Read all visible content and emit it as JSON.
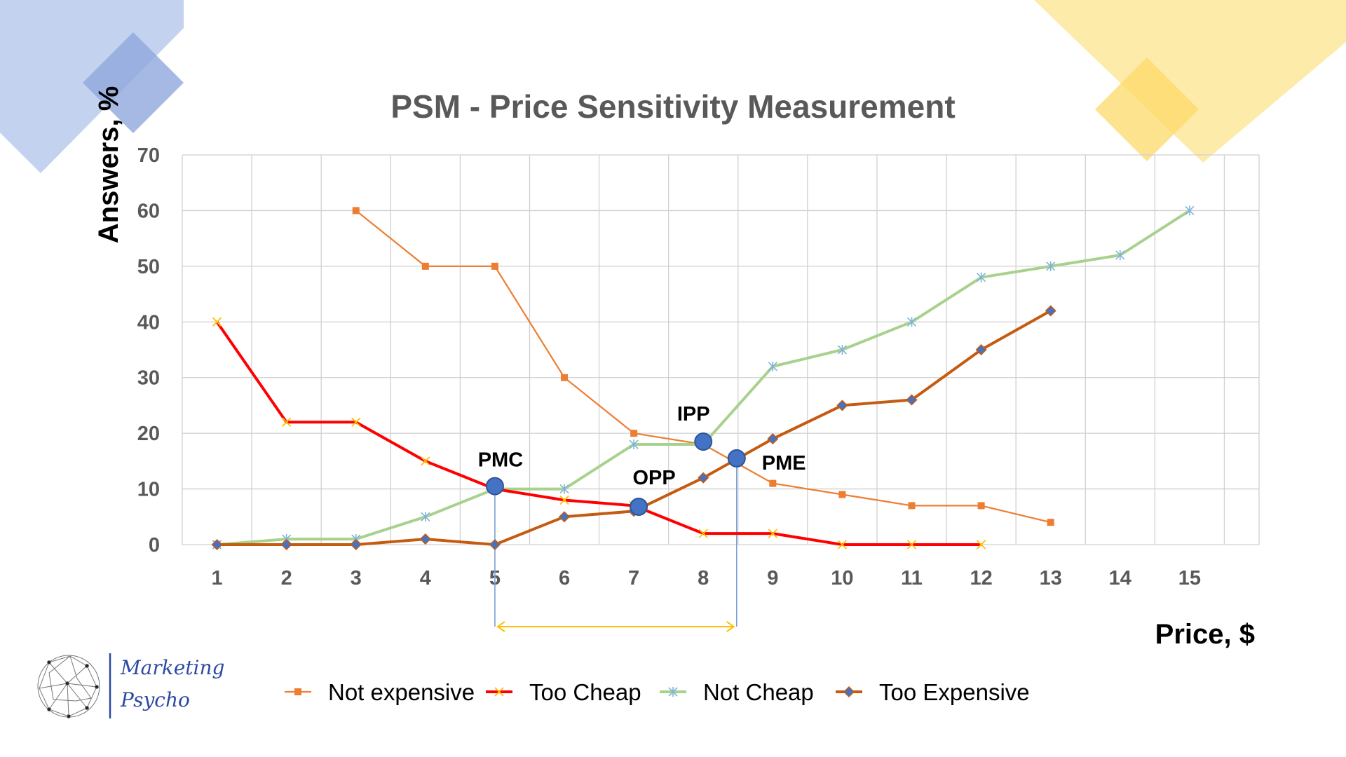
{
  "logo": {
    "line1": "Marketing",
    "line2": "Psycho"
  },
  "chart_data": {
    "type": "line",
    "title": "PSM - Price Sensitivity Measurement",
    "xlabel": "Price, $",
    "ylabel": "Answers, %",
    "x": [
      1,
      2,
      3,
      4,
      5,
      6,
      7,
      8,
      9,
      10,
      11,
      12,
      13,
      14,
      15
    ],
    "ylim": [
      0,
      70
    ],
    "yticks": [
      0,
      10,
      20,
      30,
      40,
      50,
      60,
      70
    ],
    "grid": true,
    "legend_position": "bottom",
    "series": [
      {
        "name": "Not expensive",
        "color": "#ed7d31",
        "marker": "square",
        "points": [
          [
            3,
            60
          ],
          [
            4,
            50
          ],
          [
            5,
            50
          ],
          [
            6,
            30
          ],
          [
            7,
            20
          ],
          [
            8,
            18
          ],
          [
            9,
            11
          ],
          [
            10,
            9
          ],
          [
            11,
            7
          ],
          [
            12,
            7
          ],
          [
            13,
            4
          ]
        ]
      },
      {
        "name": "Too Cheap",
        "color": "#ff0000",
        "marker": "x",
        "points": [
          [
            1,
            40
          ],
          [
            2,
            22
          ],
          [
            3,
            22
          ],
          [
            4,
            15
          ],
          [
            5,
            10
          ],
          [
            6,
            8
          ],
          [
            7,
            7
          ],
          [
            8,
            2
          ],
          [
            9,
            2
          ],
          [
            10,
            0
          ],
          [
            11,
            0
          ],
          [
            12,
            0
          ]
        ]
      },
      {
        "name": "Not Cheap",
        "color": "#a9d18e",
        "marker": "asterisk",
        "points": [
          [
            1,
            0
          ],
          [
            2,
            1
          ],
          [
            3,
            1
          ],
          [
            4,
            5
          ],
          [
            5,
            10
          ],
          [
            6,
            10
          ],
          [
            7,
            18
          ],
          [
            8,
            18
          ],
          [
            9,
            32
          ],
          [
            10,
            35
          ],
          [
            11,
            40
          ],
          [
            12,
            48
          ],
          [
            13,
            50
          ],
          [
            14,
            52
          ],
          [
            15,
            60
          ]
        ]
      },
      {
        "name": "Too Expensive",
        "color": "#c55a11",
        "marker": "diamond",
        "points": [
          [
            1,
            0
          ],
          [
            2,
            0
          ],
          [
            3,
            0
          ],
          [
            4,
            1
          ],
          [
            5,
            0
          ],
          [
            6,
            5
          ],
          [
            7,
            6
          ],
          [
            8,
            12
          ],
          [
            9,
            19
          ],
          [
            10,
            25
          ],
          [
            11,
            26
          ],
          [
            12,
            35
          ],
          [
            13,
            42
          ]
        ]
      }
    ],
    "key_points": [
      {
        "label": "PMC",
        "x": 5.0,
        "y": 10.5
      },
      {
        "label": "OPP",
        "x": 7.07,
        "y": 6.8
      },
      {
        "label": "IPP",
        "x": 8.0,
        "y": 18.5
      },
      {
        "label": "PME",
        "x": 8.48,
        "y": 15.5
      }
    ],
    "range_bracket": {
      "from": 5.0,
      "to": 8.48,
      "color": "#ffc000"
    }
  }
}
